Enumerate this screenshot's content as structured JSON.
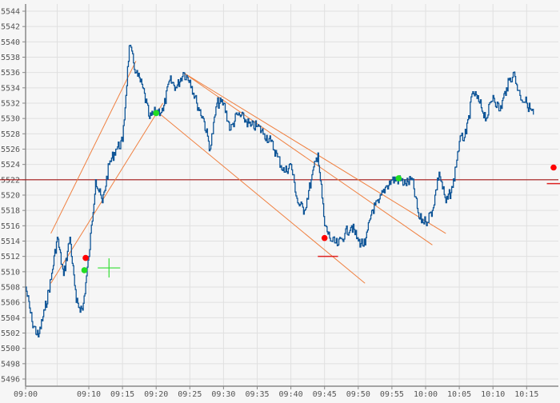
{
  "chart_data": {
    "type": "line",
    "title": "",
    "xlabel": "",
    "ylabel": "",
    "ylim": [
      5495,
      5545
    ],
    "grid": true,
    "y_ticks": [
      5496,
      5498,
      5500,
      5502,
      5504,
      5506,
      5508,
      5510,
      5512,
      5514,
      5516,
      5518,
      5520,
      5522,
      5524,
      5526,
      5528,
      5530,
      5532,
      5534,
      5536,
      5538,
      5540,
      5542,
      5544
    ],
    "x_ticks": [
      "09:00",
      "09:10",
      "09:15",
      "09:20",
      "09:25",
      "09:30",
      "09:35",
      "09:40",
      "09:45",
      "09:50",
      "09:55",
      "10:00",
      "10:05",
      "10:10",
      "10:15"
    ],
    "series": [
      {
        "name": "price",
        "color": "#0f5597",
        "points": [
          [
            "09:00",
            5508
          ],
          [
            "09:01",
            5503.5
          ],
          [
            "09:02",
            5501.5
          ],
          [
            "09:03",
            5505
          ],
          [
            "09:04",
            5509
          ],
          [
            "09:05",
            5514.5
          ],
          [
            "09:06",
            5509.5
          ],
          [
            "09:07",
            5514.5
          ],
          [
            "09:08",
            5506
          ],
          [
            "09:09",
            5505
          ],
          [
            "09:10",
            5512
          ],
          [
            "09:11",
            5522
          ],
          [
            "09:12",
            5519
          ],
          [
            "09:13",
            5524
          ],
          [
            "09:14",
            5526
          ],
          [
            "09:15",
            5527
          ],
          [
            "09:16",
            5539.5
          ],
          [
            "09:17",
            5536
          ],
          [
            "09:18",
            5534
          ],
          [
            "09:19",
            5530
          ],
          [
            "09:20",
            5531
          ],
          [
            "09:21",
            5531
          ],
          [
            "09:22",
            5535
          ],
          [
            "09:23",
            5534
          ],
          [
            "09:24",
            5536
          ],
          [
            "09:25",
            5535
          ],
          [
            "09:26",
            5532
          ],
          [
            "09:27",
            5530
          ],
          [
            "09:28",
            5526
          ],
          [
            "09:29",
            5532
          ],
          [
            "09:30",
            5532
          ],
          [
            "09:31",
            5528.5
          ],
          [
            "09:32",
            5530.5
          ],
          [
            "09:33",
            5530
          ],
          [
            "09:34",
            5529
          ],
          [
            "09:35",
            5529
          ],
          [
            "09:36",
            5528
          ],
          [
            "09:37",
            5527
          ],
          [
            "09:38",
            5525
          ],
          [
            "09:39",
            5523
          ],
          [
            "09:40",
            5524
          ],
          [
            "09:41",
            5519
          ],
          [
            "09:42",
            5518
          ],
          [
            "09:43",
            5522
          ],
          [
            "09:44",
            5525.5
          ],
          [
            "09:45",
            5516
          ],
          [
            "09:46",
            5514
          ],
          [
            "09:47",
            5513.5
          ],
          [
            "09:48",
            5515
          ],
          [
            "09:49",
            5516
          ],
          [
            "09:50",
            5514
          ],
          [
            "09:51",
            5513.5
          ],
          [
            "09:52",
            5518
          ],
          [
            "09:53",
            5519
          ],
          [
            "09:54",
            5521
          ],
          [
            "09:55",
            5522
          ],
          [
            "09:56",
            5522
          ],
          [
            "09:57",
            5521.5
          ],
          [
            "09:58",
            5522
          ],
          [
            "09:59",
            5517
          ],
          [
            "10:00",
            5516.5
          ],
          [
            "10:01",
            5518
          ],
          [
            "10:02",
            5523
          ],
          [
            "10:03",
            5519
          ],
          [
            "10:04",
            5521
          ],
          [
            "10:05",
            5527
          ],
          [
            "10:06",
            5528
          ],
          [
            "10:07",
            5533.5
          ],
          [
            "10:08",
            5532
          ],
          [
            "10:09",
            5530
          ],
          [
            "10:10",
            5533
          ],
          [
            "10:11",
            5531
          ],
          [
            "10:12",
            5534
          ],
          [
            "10:13",
            5536
          ],
          [
            "10:14",
            5533
          ],
          [
            "10:15",
            5532
          ],
          [
            "10:16",
            5530.5
          ]
        ]
      }
    ],
    "horizontal_lines": [
      {
        "name": "level",
        "y": 5522,
        "color": "#a31515"
      }
    ],
    "trend_lines": [
      {
        "name": "channel-up-upper",
        "from": [
          "09:04",
          5515
        ],
        "to": [
          "09:17",
          5537.5
        ],
        "color": "#f08040"
      },
      {
        "name": "channel-up-lower",
        "from": [
          "09:04",
          5508.5
        ],
        "to": [
          "09:21",
          5532
        ],
        "color": "#f08040"
      },
      {
        "name": "channel-down-1",
        "from": [
          "09:24",
          5536
        ],
        "to": [
          "10:03",
          5515
        ],
        "color": "#f08040"
      },
      {
        "name": "channel-down-2",
        "from": [
          "09:24",
          5536
        ],
        "to": [
          "10:01",
          5513.5
        ],
        "color": "#f08040"
      },
      {
        "name": "channel-down-3",
        "from": [
          "09:20",
          5531
        ],
        "to": [
          "09:51",
          5508.5
        ],
        "color": "#f08040"
      }
    ],
    "markers": [
      {
        "type": "sell",
        "x": "09:09.5",
        "y": 5511.8,
        "color": "#ff0000"
      },
      {
        "type": "buy",
        "x": "09:09.3",
        "y": 5510.2,
        "color": "#22dd22"
      },
      {
        "type": "buy",
        "x": "09:20",
        "y": 5530.7,
        "color": "#22dd22"
      },
      {
        "type": "sell",
        "x": "09:45",
        "y": 5514.4,
        "color": "#ff0000"
      },
      {
        "type": "buy",
        "x": "09:56",
        "y": 5522.2,
        "color": "#22dd22"
      },
      {
        "type": "sell",
        "x": "10:19",
        "y": 5523.6,
        "color": "#ff0000"
      }
    ],
    "crosshair": {
      "x": "09:13",
      "y": 5510.5,
      "color": "#33dd33"
    },
    "short_level_marks": [
      {
        "x1": "09:44",
        "x2": "09:47",
        "y": 5512,
        "color": "#dd2222"
      },
      {
        "x1": "10:18",
        "x2": "10:20",
        "y": 5521.5,
        "color": "#dd2222"
      }
    ],
    "legend": null
  },
  "colors": {
    "background": "#f6f6f6",
    "grid": "#e0e0e0",
    "axis": "#888888",
    "price": "#0f5597",
    "trend": "#f08040",
    "level": "#a31515"
  }
}
